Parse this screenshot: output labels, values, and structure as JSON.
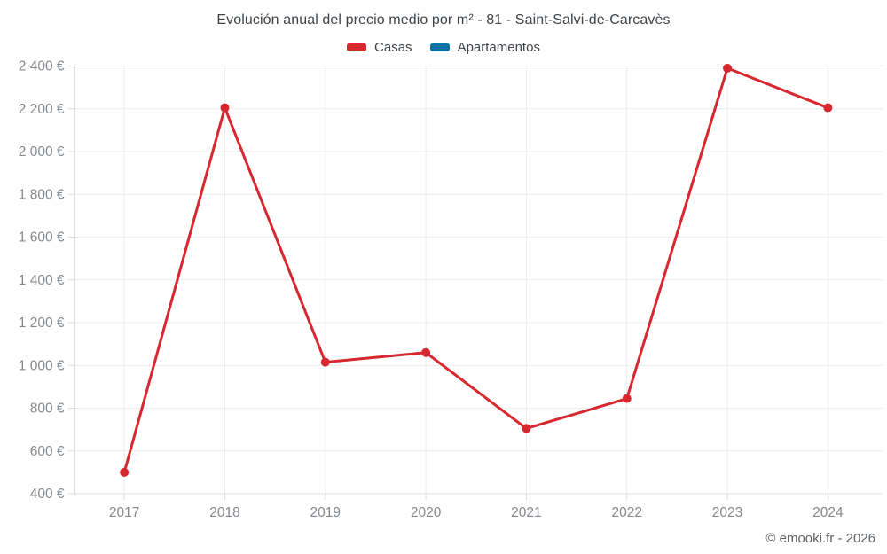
{
  "header": {
    "title": "Evolución anual del precio medio por m² - 81 - Saint-Salvi-de-Carcavès"
  },
  "legend": {
    "items": [
      {
        "label": "Casas",
        "color": "#d7282f"
      },
      {
        "label": "Apartamentos",
        "color": "#1173a5"
      }
    ]
  },
  "footer": {
    "credit": "© emooki.fr - 2026"
  },
  "chart_data": {
    "type": "line",
    "title": "Evolución anual del precio medio por m² - 81 - Saint-Salvi-de-Carcavès",
    "categories": [
      "2017",
      "2018",
      "2019",
      "2020",
      "2021",
      "2022",
      "2023",
      "2024"
    ],
    "series": [
      {
        "name": "Casas",
        "color": "#d7282f",
        "values": [
          500,
          2205,
          1015,
          1060,
          705,
          845,
          2390,
          2205
        ]
      },
      {
        "name": "Apartamentos",
        "color": "#1173a5",
        "values": []
      }
    ],
    "xlabel": "",
    "ylabel": "",
    "ylim": [
      400,
      2400
    ],
    "ytick_step": 200,
    "ytick_labels": [
      "400 €",
      "600 €",
      "800 €",
      "1 000 €",
      "1 200 €",
      "1 400 €",
      "1 600 €",
      "1 800 €",
      "2 000 €",
      "2 200 €",
      "2 400 €"
    ],
    "currency_suffix": " €",
    "grid": true,
    "legend_position": "top",
    "colors": {
      "grid": "#ececec",
      "axis": "#dcdcdc",
      "tick_label": "#85898d"
    }
  }
}
